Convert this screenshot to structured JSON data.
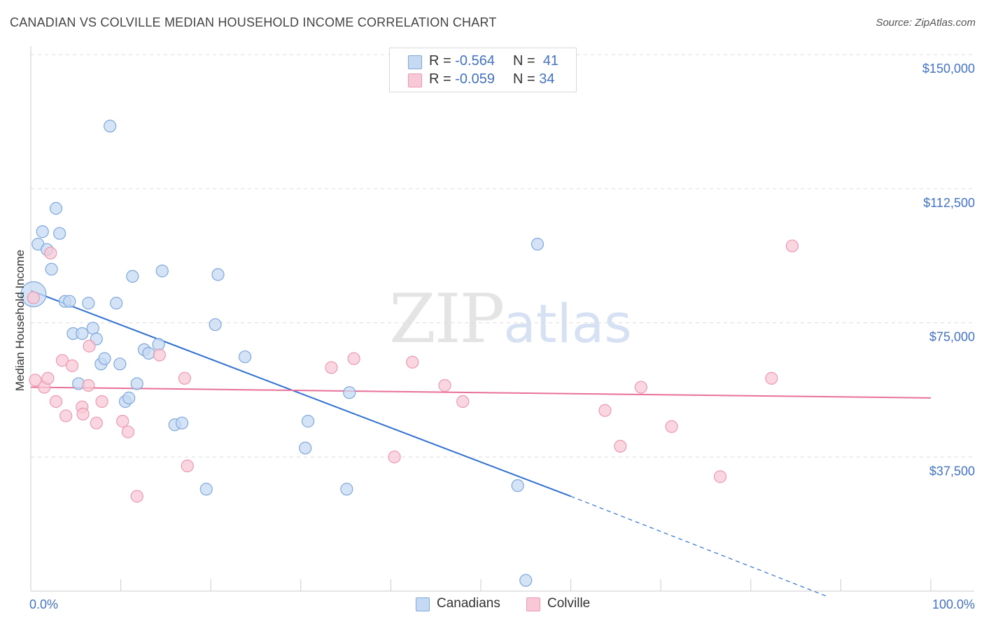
{
  "title": "CANADIAN VS COLVILLE MEDIAN HOUSEHOLD INCOME CORRELATION CHART",
  "source": "Source: ZipAtlas.com",
  "watermark": {
    "zip": "ZIP",
    "atlas": "atlas"
  },
  "legend": {
    "rows": [
      {
        "r_label": "R =",
        "r_value": "-0.564",
        "n_label": "N =",
        "n_value": "41"
      },
      {
        "r_label": "R =",
        "r_value": "-0.059",
        "n_label": "N =",
        "n_value": "34"
      }
    ]
  },
  "bottom_legend": [
    "Canadians",
    "Colville"
  ],
  "colors": {
    "blue_fill": "#c5d9f3",
    "blue_stroke": "#7fa8dc",
    "blue_line": "#3070d0",
    "pink_fill": "#f8c8d6",
    "pink_stroke": "#eb9ab4",
    "pink_line": "#e8709a",
    "axis_text": "#4472c4",
    "grid": "#dddddd"
  },
  "chart_data": {
    "type": "scatter",
    "title": "CANADIAN VS COLVILLE MEDIAN HOUSEHOLD INCOME CORRELATION CHART",
    "ylabel": "Median Household Income",
    "xlabel": "",
    "xlim": [
      0,
      100
    ],
    "ylim": [
      0,
      150000
    ],
    "x_tick_labels": [
      "0.0%",
      "100.0%"
    ],
    "y_ticks": [
      37500,
      75000,
      112500,
      150000
    ],
    "y_tick_labels": [
      "$37,500",
      "$75,000",
      "$112,500",
      "$150,000"
    ],
    "grid": true,
    "series": [
      {
        "name": "Canadians",
        "points": [
          [
            0.3,
            83000
          ],
          [
            0.8,
            97000
          ],
          [
            1.3,
            100500
          ],
          [
            1.8,
            95500
          ],
          [
            2.3,
            90000
          ],
          [
            2.8,
            107000
          ],
          [
            3.2,
            100000
          ],
          [
            3.8,
            81000
          ],
          [
            4.3,
            81000
          ],
          [
            4.7,
            72000
          ],
          [
            5.3,
            58000
          ],
          [
            5.7,
            72000
          ],
          [
            6.4,
            80500
          ],
          [
            6.9,
            73500
          ],
          [
            7.3,
            70500
          ],
          [
            7.8,
            63500
          ],
          [
            8.2,
            65000
          ],
          [
            8.8,
            130000
          ],
          [
            9.5,
            80500
          ],
          [
            9.9,
            63500
          ],
          [
            10.5,
            53000
          ],
          [
            10.9,
            54000
          ],
          [
            11.3,
            88000
          ],
          [
            11.8,
            58000
          ],
          [
            12.6,
            67500
          ],
          [
            13.1,
            66500
          ],
          [
            14.2,
            69000
          ],
          [
            14.6,
            89500
          ],
          [
            16.0,
            46500
          ],
          [
            16.8,
            47000
          ],
          [
            19.5,
            28500
          ],
          [
            20.5,
            74500
          ],
          [
            20.8,
            88500
          ],
          [
            23.8,
            65500
          ],
          [
            30.5,
            40000
          ],
          [
            30.8,
            47500
          ],
          [
            35.1,
            28500
          ],
          [
            35.4,
            55500
          ],
          [
            54.1,
            29500
          ],
          [
            55.0,
            3000
          ],
          [
            56.3,
            97000
          ]
        ]
      },
      {
        "name": "Colville",
        "points": [
          [
            0.3,
            82000
          ],
          [
            0.5,
            59000
          ],
          [
            1.5,
            57000
          ],
          [
            1.9,
            59500
          ],
          [
            2.2,
            94500
          ],
          [
            2.8,
            53000
          ],
          [
            3.5,
            64500
          ],
          [
            3.9,
            49000
          ],
          [
            4.6,
            63000
          ],
          [
            5.7,
            51500
          ],
          [
            5.8,
            49500
          ],
          [
            6.4,
            57500
          ],
          [
            6.5,
            68500
          ],
          [
            7.3,
            47000
          ],
          [
            7.9,
            53000
          ],
          [
            10.2,
            47500
          ],
          [
            10.8,
            44500
          ],
          [
            11.8,
            26500
          ],
          [
            14.3,
            66000
          ],
          [
            17.1,
            59500
          ],
          [
            17.4,
            35000
          ],
          [
            33.4,
            62500
          ],
          [
            35.9,
            65000
          ],
          [
            40.4,
            37500
          ],
          [
            42.4,
            64000
          ],
          [
            46.0,
            57500
          ],
          [
            48.0,
            53000
          ],
          [
            63.8,
            50500
          ],
          [
            65.5,
            40500
          ],
          [
            67.8,
            57000
          ],
          [
            71.2,
            46000
          ],
          [
            76.6,
            32000
          ],
          [
            82.3,
            59500
          ],
          [
            84.6,
            96500
          ]
        ]
      }
    ],
    "trendlines": [
      {
        "series": "Canadians",
        "x0": 0,
        "y0": 84000,
        "x1": 60,
        "y1": 26500,
        "dashed_to_x": 88.5,
        "dashed_to_y": -1500
      },
      {
        "series": "Colville",
        "x0": 0,
        "y0": 57000,
        "x1": 100,
        "y1": 54000
      }
    ]
  }
}
